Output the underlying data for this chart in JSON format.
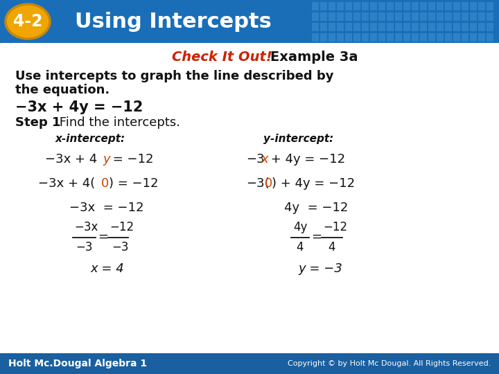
{
  "title_badge": "4-2",
  "title_text": "Using Intercepts",
  "header_bg_color": "#1a6eb8",
  "badge_bg_color": "#f0a500",
  "badge_border_color": "#c8860a",
  "badge_text_color": "#ffffff",
  "title_text_color": "#ffffff",
  "check_it_out_color": "#cc2200",
  "body_text_color": "#111111",
  "orange_color": "#cc4400",
  "footer_bg_color": "#1a5fa0",
  "footer_left": "Holt Mc.Dougal Algebra 1",
  "footer_right": "Copyright © by Holt Mc Dougal. All Rights Reserved.",
  "slide_bg_color": "#ffffff",
  "grid_color": "#3a8fd0"
}
